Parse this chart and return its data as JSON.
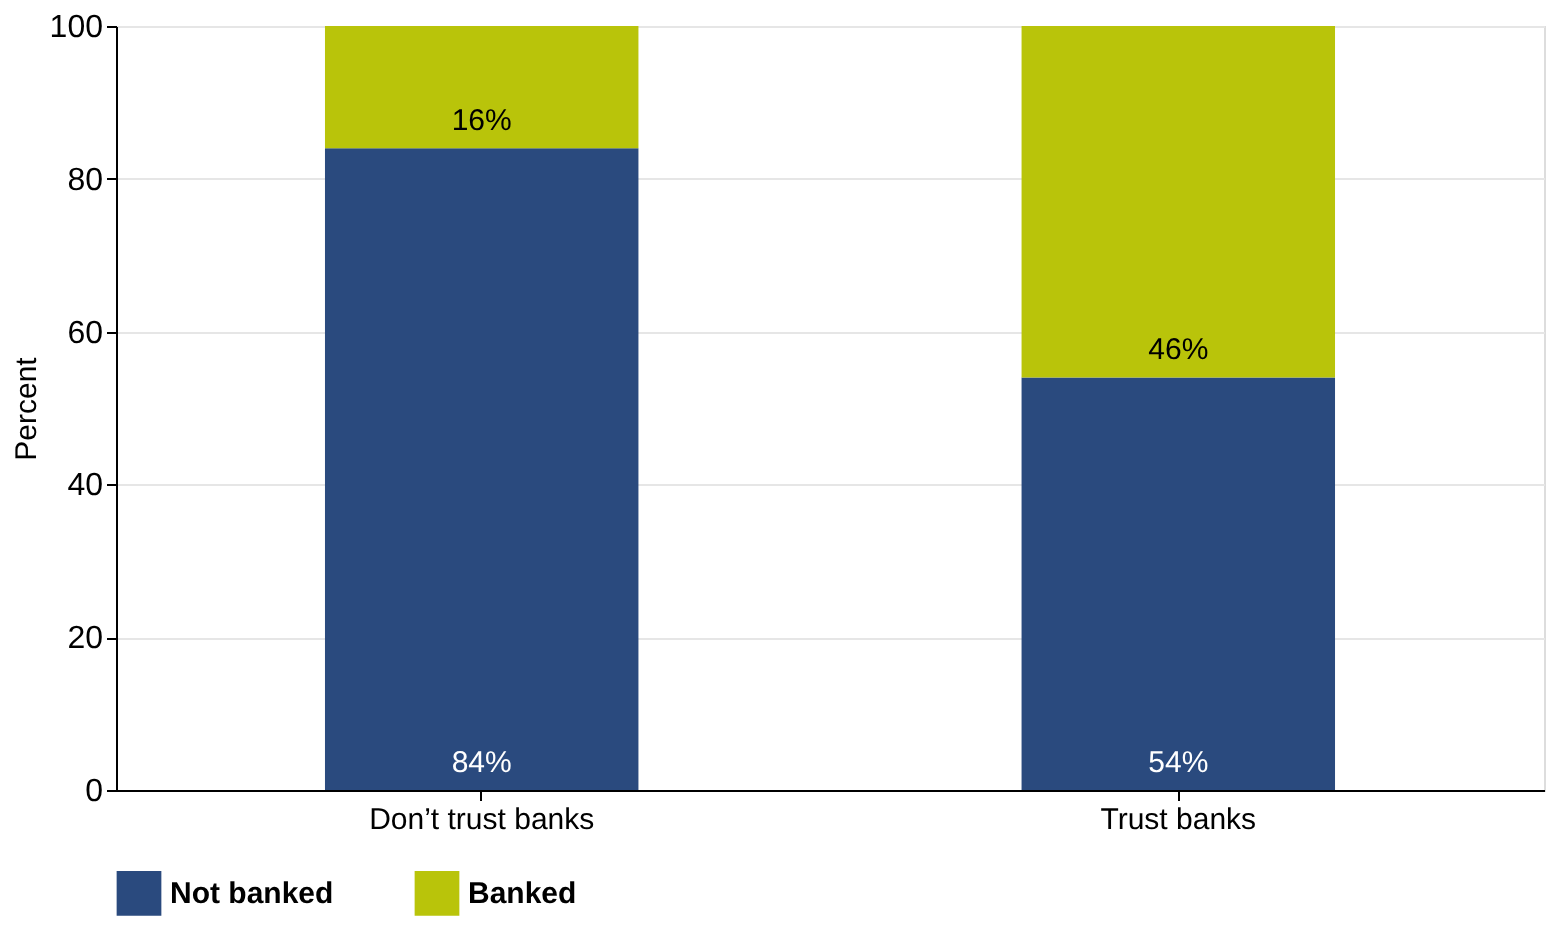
{
  "chart_data": {
    "type": "bar",
    "stacked": true,
    "ylabel": "Percent",
    "categories": [
      "Don’t trust banks",
      "Trust banks"
    ],
    "series": [
      {
        "name": "Not banked",
        "color": "#2a4a7e",
        "values": [
          84,
          54
        ],
        "value_labels": [
          "84%",
          "54%"
        ]
      },
      {
        "name": "Banked",
        "color": "#b9c40a",
        "values": [
          16,
          46
        ],
        "value_labels": [
          "16%",
          "46%"
        ]
      }
    ],
    "ylim": [
      0,
      100
    ],
    "yticks": [
      0,
      20,
      40,
      60,
      80,
      100
    ],
    "grid": "y",
    "legend": "bottom"
  }
}
